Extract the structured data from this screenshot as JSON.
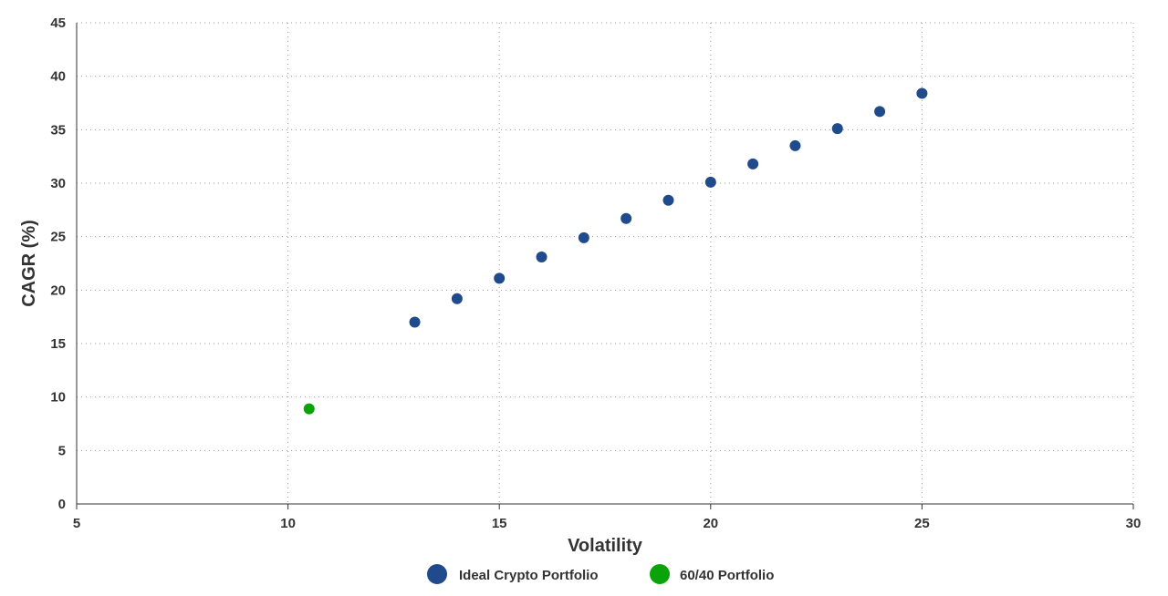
{
  "chart_data": {
    "type": "scatter",
    "xlabel": "Volatility",
    "ylabel": "CAGR (%)",
    "xlim": [
      5,
      30
    ],
    "ylim": [
      0,
      45
    ],
    "xticks": [
      "5",
      "10",
      "15",
      "20",
      "25",
      "30"
    ],
    "yticks": [
      "0",
      "5",
      "10",
      "15",
      "20",
      "25",
      "30",
      "35",
      "40",
      "45"
    ],
    "grid": true,
    "legend_position": "bottom",
    "series": [
      {
        "name": "Ideal Crypto Portfolio",
        "color": "#1f4a8c",
        "points": [
          [
            13,
            17.0
          ],
          [
            14,
            19.2
          ],
          [
            15,
            21.1
          ],
          [
            16,
            23.1
          ],
          [
            17,
            24.9
          ],
          [
            18,
            26.7
          ],
          [
            19,
            28.4
          ],
          [
            20,
            30.1
          ],
          [
            21,
            31.8
          ],
          [
            22,
            33.5
          ],
          [
            23,
            35.1
          ],
          [
            24,
            36.7
          ],
          [
            25,
            38.4
          ]
        ]
      },
      {
        "name": "60/40 Portfolio",
        "color": "#0aa30a",
        "points": [
          [
            10.5,
            8.9
          ]
        ]
      }
    ]
  }
}
